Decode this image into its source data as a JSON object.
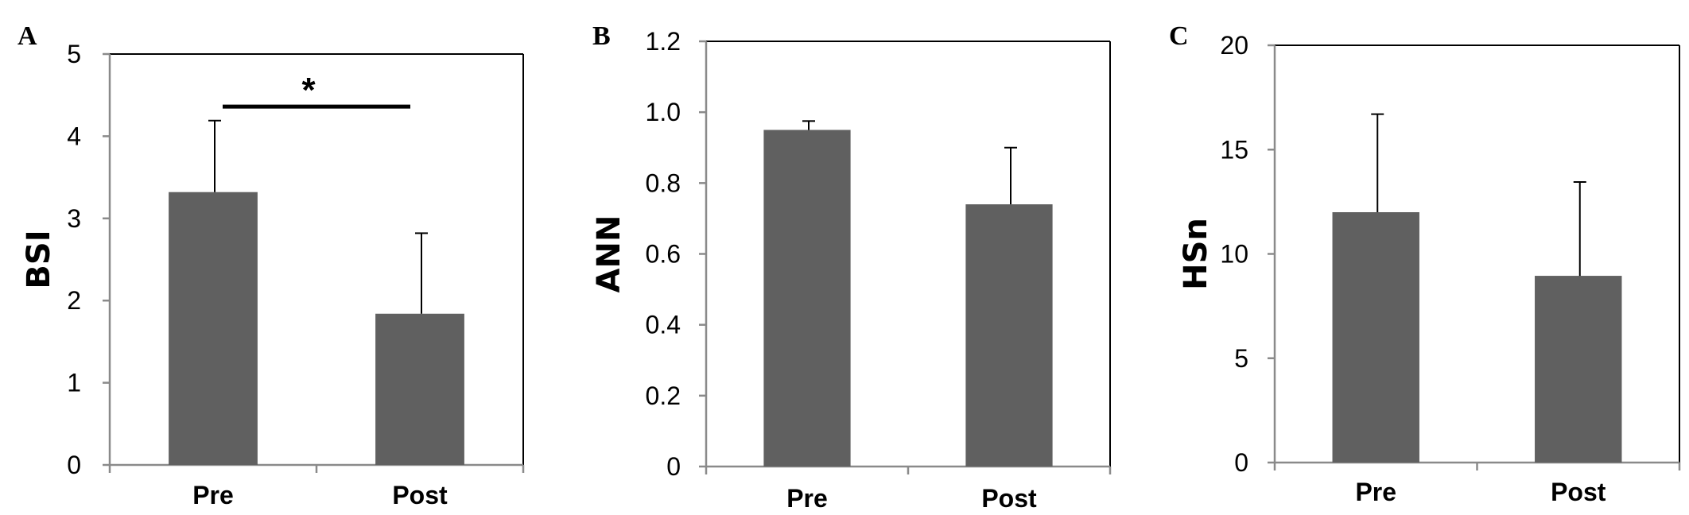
{
  "bar_color": "#606060",
  "chart_data": [
    {
      "type": "bar",
      "panel": "A",
      "categories": [
        "Pre",
        "Post"
      ],
      "values": [
        3.32,
        1.84
      ],
      "errors": [
        0.87,
        0.98
      ],
      "ylabel": "BSI",
      "ylim": [
        0,
        5
      ],
      "yticks": [
        "0",
        "1",
        "2",
        "3",
        "4",
        "5"
      ],
      "significance": {
        "from": 0,
        "to": 1,
        "y": 4.36,
        "label": "*"
      },
      "grid": false
    },
    {
      "type": "bar",
      "panel": "B",
      "categories": [
        "Pre",
        "Post"
      ],
      "values": [
        0.95,
        0.74
      ],
      "errors": [
        0.025,
        0.16
      ],
      "ylabel": "ANN",
      "ylim": [
        0,
        1.2
      ],
      "yticks": [
        "0",
        "0.2",
        "0.4",
        "0.6",
        "0.8",
        "1.0",
        "1.2"
      ],
      "grid": false
    },
    {
      "type": "bar",
      "panel": "C",
      "categories": [
        "Pre",
        "Post"
      ],
      "values": [
        12.0,
        8.95
      ],
      "errors": [
        4.7,
        4.5
      ],
      "ylabel": "HSn",
      "ylim": [
        0,
        20
      ],
      "yticks": [
        "0",
        "5",
        "10",
        "15",
        "20"
      ],
      "grid": false
    }
  ]
}
